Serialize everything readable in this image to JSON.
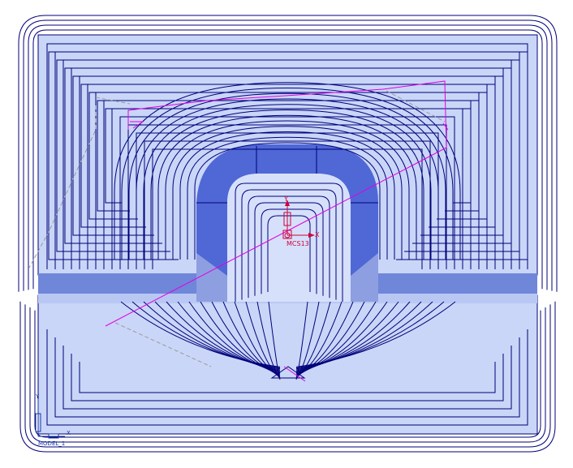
{
  "viewport": {
    "csys_label": "MCS13",
    "csys_x_label": "X",
    "csys_y_label": "Y",
    "model_label": "MODEL_1",
    "model_x_label": "X",
    "model_y_label": "Y"
  },
  "colors": {
    "background": "#ffffff",
    "part_fill": "#c9d6f7",
    "part_fill_light": "#d6e0fa",
    "wall_fill": "#4f68d6",
    "wall_dark": "#6f86d9",
    "toolpath": "#00007a",
    "rapid_move": "#e200e2",
    "retract_move": "#9a9a9a",
    "csys": "#d0003a",
    "model_csys": "#1a3aa8"
  }
}
